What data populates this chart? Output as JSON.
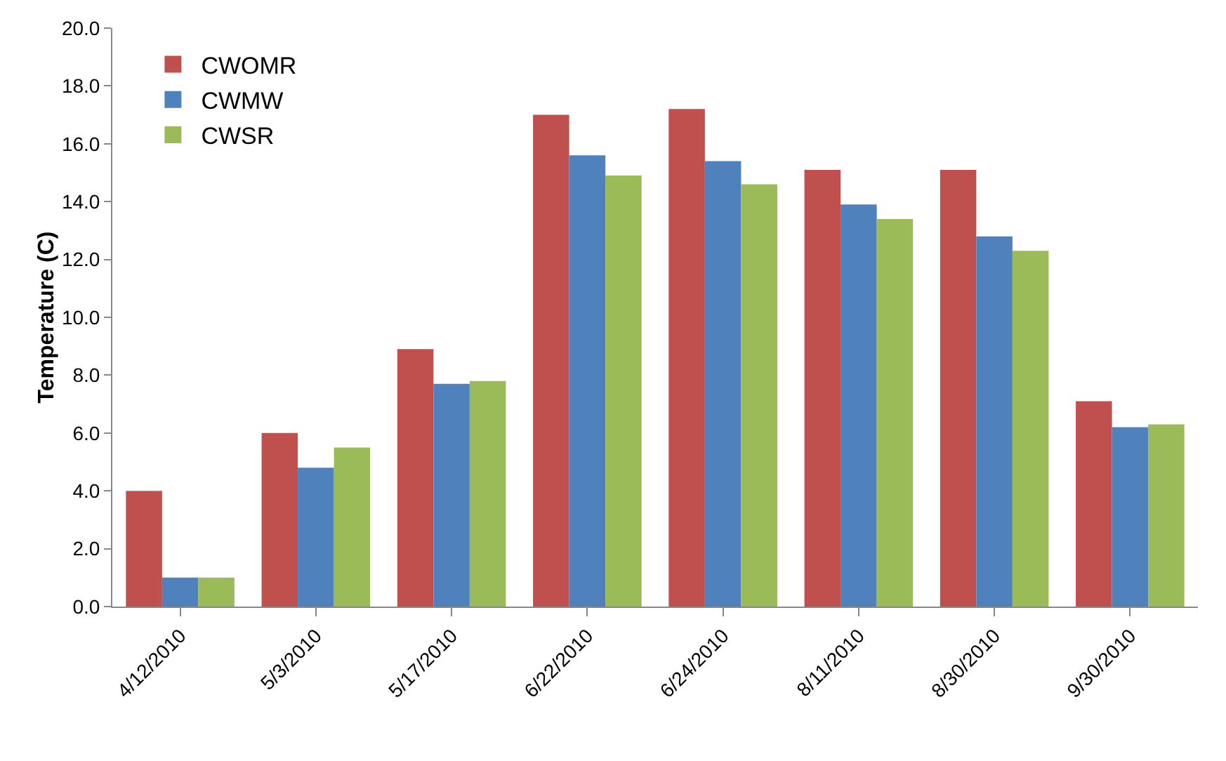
{
  "chart_data": {
    "type": "bar",
    "ylabel": "Temperature (C)",
    "categories": [
      "4/12/2010",
      "5/3/2010",
      "5/17/2010",
      "6/22/2010",
      "6/24/2010",
      "8/11/2010",
      "8/30/2010",
      "9/30/2010"
    ],
    "series": [
      {
        "name": "CWOMR",
        "color": "#c0504d",
        "values": [
          4.0,
          6.0,
          8.9,
          17.0,
          17.2,
          15.1,
          15.1,
          7.1
        ]
      },
      {
        "name": "CWMW",
        "color": "#4f81bd",
        "values": [
          1.0,
          4.8,
          7.7,
          15.6,
          15.4,
          13.9,
          12.8,
          6.2
        ]
      },
      {
        "name": "CWSR",
        "color": "#9bbb59",
        "values": [
          1.0,
          5.5,
          7.8,
          14.9,
          14.6,
          13.4,
          12.3,
          6.3
        ]
      }
    ],
    "ylim": [
      0,
      20
    ],
    "yticks": [
      {
        "value": 0,
        "label": "0.0"
      },
      {
        "value": 2,
        "label": "2.0"
      },
      {
        "value": 4,
        "label": "4.0"
      },
      {
        "value": 6,
        "label": "6.0"
      },
      {
        "value": 8,
        "label": "8.0"
      },
      {
        "value": 10,
        "label": "10.0"
      },
      {
        "value": 12,
        "label": "12.0"
      },
      {
        "value": 14,
        "label": "14.0"
      },
      {
        "value": 16,
        "label": "16.0"
      },
      {
        "value": 18,
        "label": "18.0"
      },
      {
        "value": 20,
        "label": "20.0"
      }
    ],
    "grid": false,
    "legend": "top left"
  }
}
